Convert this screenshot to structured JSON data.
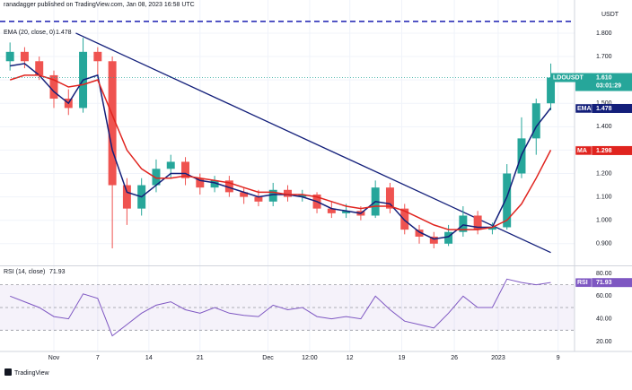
{
  "chart_data": {
    "type": "candlestick",
    "title": "ranadagger published on TradingView.com, Jan 08, 2023 16:58 UTC",
    "symbol": "LDOUSDT",
    "currency": "USDT",
    "countdown": "03:01:29",
    "branding": "TradingView",
    "last_price": {
      "value": 1.61,
      "label": "1.610"
    },
    "colors": {
      "up": "#26a69a",
      "down": "#ef5350"
    },
    "x": [
      -6,
      -4,
      -2,
      0,
      2,
      4,
      6,
      8,
      10,
      12,
      14,
      16,
      18,
      20,
      22,
      24,
      26,
      28,
      30,
      32,
      34,
      36,
      38,
      40,
      42,
      44,
      46,
      48,
      50,
      52,
      54,
      56,
      58,
      60,
      62,
      64,
      66,
      68
    ],
    "open": [
      1.68,
      1.72,
      1.68,
      1.62,
      1.52,
      1.48,
      1.72,
      1.68,
      1.15,
      1.05,
      1.15,
      1.22,
      1.25,
      1.18,
      1.14,
      1.17,
      1.12,
      1.1,
      1.08,
      1.13,
      1.1,
      1.11,
      1.05,
      1.03,
      1.04,
      1.02,
      1.14,
      1.05,
      0.96,
      0.93,
      0.9,
      0.95,
      1.02,
      0.96,
      0.97,
      1.2,
      1.35,
      1.5
    ],
    "high": [
      1.76,
      1.74,
      1.7,
      1.64,
      1.56,
      1.78,
      1.74,
      1.7,
      1.18,
      1.18,
      1.26,
      1.28,
      1.27,
      1.2,
      1.19,
      1.19,
      1.14,
      1.13,
      1.16,
      1.15,
      1.13,
      1.12,
      1.08,
      1.07,
      1.06,
      1.17,
      1.16,
      1.07,
      0.98,
      0.95,
      0.98,
      1.06,
      1.04,
      0.99,
      1.24,
      1.44,
      1.52,
      1.67
    ],
    "low": [
      1.64,
      1.65,
      1.6,
      1.48,
      1.45,
      1.46,
      1.62,
      0.88,
      0.98,
      1.02,
      1.12,
      1.18,
      1.15,
      1.11,
      1.12,
      1.1,
      1.07,
      1.06,
      1.06,
      1.08,
      1.08,
      1.03,
      1.01,
      1.01,
      1.0,
      1.01,
      1.03,
      0.94,
      0.9,
      0.88,
      0.89,
      0.93,
      0.94,
      0.94,
      0.96,
      1.18,
      1.28,
      1.47
    ],
    "close": [
      1.72,
      1.68,
      1.62,
      1.52,
      1.48,
      1.72,
      1.68,
      1.15,
      1.05,
      1.15,
      1.22,
      1.25,
      1.18,
      1.14,
      1.17,
      1.12,
      1.1,
      1.08,
      1.13,
      1.1,
      1.11,
      1.05,
      1.03,
      1.04,
      1.02,
      1.14,
      1.05,
      0.96,
      0.93,
      0.9,
      0.95,
      1.02,
      0.96,
      0.97,
      1.2,
      1.35,
      1.5,
      1.61
    ],
    "series": [
      {
        "name": "EMA",
        "legend": "EMA (20, close, 0)",
        "color": "#131f7a",
        "values": [
          1.66,
          1.67,
          1.62,
          1.55,
          1.5,
          1.6,
          1.62,
          1.3,
          1.12,
          1.1,
          1.15,
          1.2,
          1.2,
          1.17,
          1.16,
          1.14,
          1.12,
          1.1,
          1.11,
          1.11,
          1.1,
          1.08,
          1.05,
          1.04,
          1.03,
          1.08,
          1.07,
          1.0,
          0.95,
          0.92,
          0.93,
          0.98,
          0.97,
          0.97,
          1.1,
          1.28,
          1.4,
          1.48
        ],
        "last": {
          "value": 1.478,
          "label": "1.478"
        }
      },
      {
        "name": "MA",
        "color": "#e0241f",
        "values": [
          1.6,
          1.62,
          1.62,
          1.6,
          1.57,
          1.58,
          1.6,
          1.45,
          1.3,
          1.22,
          1.18,
          1.18,
          1.19,
          1.18,
          1.17,
          1.16,
          1.14,
          1.12,
          1.12,
          1.11,
          1.11,
          1.1,
          1.08,
          1.06,
          1.05,
          1.06,
          1.06,
          1.04,
          1.01,
          0.98,
          0.96,
          0.96,
          0.96,
          0.97,
          1.0,
          1.07,
          1.18,
          1.3
        ],
        "last": {
          "value": 1.298,
          "label": "1.298"
        }
      }
    ],
    "trendline": {
      "x": [
        3,
        68
      ],
      "y": [
        1.8,
        0.862
      ],
      "color": "#131f7a"
    },
    "resistance": {
      "value": 1.85,
      "color": "#1a1fb0"
    },
    "xlim": [
      -7.37,
      71.25
    ],
    "xticks": [
      {
        "value": 0,
        "label": "Nov"
      },
      {
        "value": 6,
        "label": "7"
      },
      {
        "value": 13,
        "label": "14"
      },
      {
        "value": 20,
        "label": "21"
      },
      {
        "value": 29.3,
        "label": "Dec"
      },
      {
        "value": 35,
        "label": "12:00"
      },
      {
        "value": 40.5,
        "label": "12"
      },
      {
        "value": 47.6,
        "label": "19"
      },
      {
        "value": 54.8,
        "label": "26"
      },
      {
        "value": 60.8,
        "label": "2023"
      },
      {
        "value": 69,
        "label": "9"
      }
    ],
    "ylim": [
      0.811,
      1.911
    ],
    "yticks": [
      {
        "value": 0.9,
        "label": "0.900"
      },
      {
        "value": 1.0,
        "label": "1.000"
      },
      {
        "value": 1.1,
        "label": "1.100"
      },
      {
        "value": 1.2,
        "label": "1.200"
      },
      {
        "value": 1.3,
        "label": "1.300"
      },
      {
        "value": 1.4,
        "label": "1.400"
      },
      {
        "value": 1.5,
        "label": "1.500"
      },
      {
        "value": 1.6,
        "label": "1.600"
      },
      {
        "value": 1.7,
        "label": "1.700"
      },
      {
        "value": 1.8,
        "label": "1.800"
      }
    ],
    "grid": true,
    "rsi": {
      "name": "RSI",
      "legend": "RSI (14, close)",
      "color": "#7e57c2",
      "values": [
        60,
        55,
        50,
        42,
        40,
        62,
        58,
        25,
        35,
        45,
        52,
        55,
        48,
        45,
        50,
        45,
        43,
        42,
        52,
        48,
        50,
        42,
        40,
        42,
        40,
        60,
        48,
        38,
        35,
        32,
        45,
        60,
        50,
        50,
        75,
        72,
        70,
        72
      ],
      "last": {
        "value": 71.93,
        "label": "71.93"
      },
      "ylim": [
        11.3,
        85.5
      ],
      "yticks": [
        {
          "value": 20,
          "label": "20.00"
        },
        {
          "value": 40,
          "label": "40.00"
        },
        {
          "value": 60,
          "label": "60.00"
        },
        {
          "value": 80,
          "label": "80.00"
        }
      ],
      "bands": [
        30,
        50,
        70
      ]
    }
  }
}
